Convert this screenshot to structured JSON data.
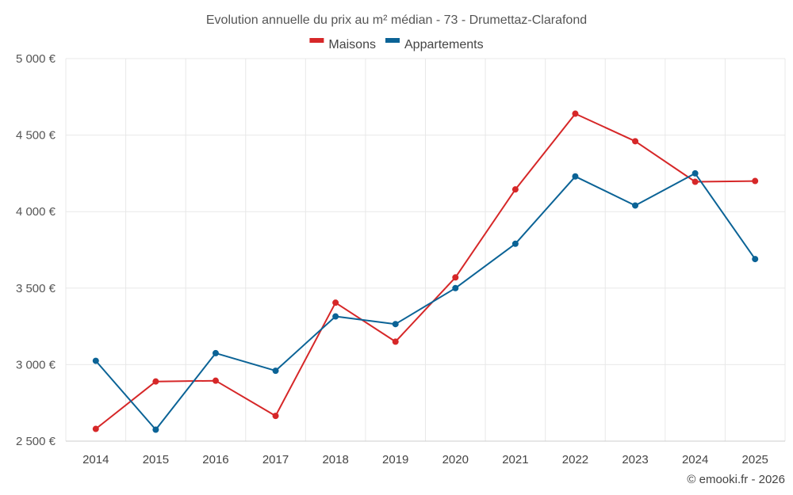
{
  "chart_data": {
    "type": "line",
    "title": "Evolution annuelle du prix au m² médian - 73 - Drumettaz-Clarafond",
    "categories": [
      "2014",
      "2015",
      "2016",
      "2017",
      "2018",
      "2019",
      "2020",
      "2021",
      "2022",
      "2023",
      "2024",
      "2025"
    ],
    "series": [
      {
        "name": "Maisons",
        "color": "#d62728",
        "values": [
          2580,
          2890,
          2895,
          2665,
          3405,
          3150,
          3570,
          4145,
          4640,
          4460,
          4195,
          4200
        ]
      },
      {
        "name": "Appartements",
        "color": "#0b6396",
        "values": [
          3025,
          2575,
          3075,
          2960,
          3315,
          3265,
          3500,
          3790,
          4230,
          4040,
          4250,
          3690
        ]
      }
    ],
    "y_ticks": [
      "2 500 €",
      "3 000 €",
      "3 500 €",
      "4 000 €",
      "4 500 €",
      "5 000 €"
    ],
    "y_tick_values": [
      2500,
      3000,
      3500,
      4000,
      4500,
      5000
    ],
    "ylim": [
      2500,
      5000
    ],
    "legend_position": "top-center",
    "grid": true,
    "credit": "© emooki.fr - 2026"
  }
}
